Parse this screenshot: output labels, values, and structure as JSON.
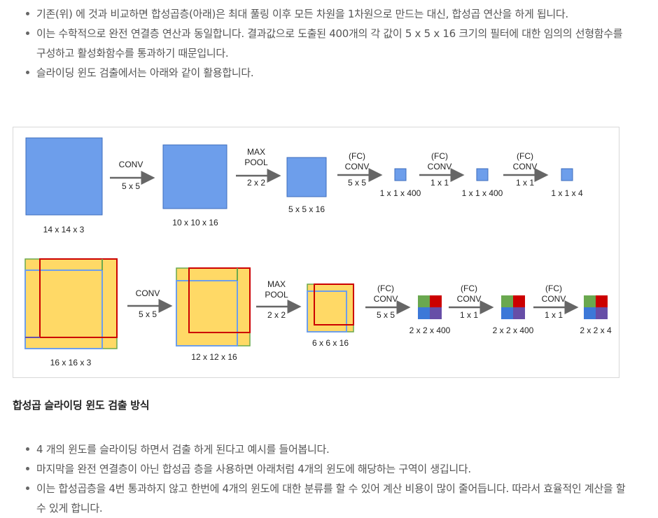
{
  "intro_bullets": [
    "기존(위) 에 것과 비교하면 합성곱층(아래)은 최대 풀링 이후 모든 차원을 1차원으로 만드는 대신, 합성곱 연산을 하게 됩니다.",
    "이는 수학적으로 완전 연결층 연산과 동일합니다. 결과값으로 도출된 400개의 각 값이 5 x 5 x 16 크기의 필터에 대한 임의의 선형함수를 구성하고 활성화함수를 통과하기  때문입니다.",
    "슬라이딩 윈도 검출에서는 아래와 같이 활용합니다."
  ],
  "figure": {
    "colors": {
      "blue": "#6d9eeb",
      "yellow": "#ffd966",
      "red": "#cc0000",
      "green": "#6aa84f",
      "purple": "#674ea7",
      "arrow": "#666666"
    },
    "row1": {
      "layers": [
        "14 x 14 x 3",
        "10 x 10 x 16",
        "5 x 5 x 16",
        "1 x 1 x 400",
        "1 x 1 x 400",
        "1 x 1 x 4"
      ],
      "ops": [
        {
          "line1": "",
          "line2": "CONV",
          "line3": "5 x 5"
        },
        {
          "line1": "MAX",
          "line2": "POOL",
          "line3": "2 x 2"
        },
        {
          "line1": "(FC)",
          "line2": "CONV",
          "line3": "5 x 5"
        },
        {
          "line1": "(FC)",
          "line2": "CONV",
          "line3": "1 x 1"
        },
        {
          "line1": "(FC)",
          "line2": "CONV",
          "line3": "1 x 1"
        }
      ]
    },
    "row2": {
      "layers": [
        "16 x 16 x 3",
        "12 x 12 x 16",
        "6 x 6 x 16",
        "2 x 2 x 400",
        "2 x 2 x 400",
        "2 x 2 x 4"
      ],
      "ops": [
        {
          "line1": "",
          "line2": "CONV",
          "line3": "5 x 5"
        },
        {
          "line1": "MAX",
          "line2": "POOL",
          "line3": "2 x 2"
        },
        {
          "line1": "(FC)",
          "line2": "CONV",
          "line3": "5 x 5"
        },
        {
          "line1": "(FC)",
          "line2": "CONV",
          "line3": "1 x 1"
        },
        {
          "line1": "(FC)",
          "line2": "CONV",
          "line3": "1 x 1"
        }
      ]
    }
  },
  "section_title": "합성곱 슬라이딩 윈도 검출 방식",
  "detail_bullets": [
    "4 개의 윈도를 슬라이딩 하면서 검출 하게 된다고 예시를 들어봅니다.",
    "마지막을 완전 연결층이 아닌 합성곱 층을 사용하면 아래처럼 4개의 윈도에 해당하는 구역이 생깁니다.",
    "이는 합성곱층을 4번 통과하지 않고 한번에 4개의 윈도에 대한 분류를 할 수 있어 계산 비용이 많이 줄어듭니다. 따라서 효율적인 계산을 할 수 있게 합니다."
  ]
}
